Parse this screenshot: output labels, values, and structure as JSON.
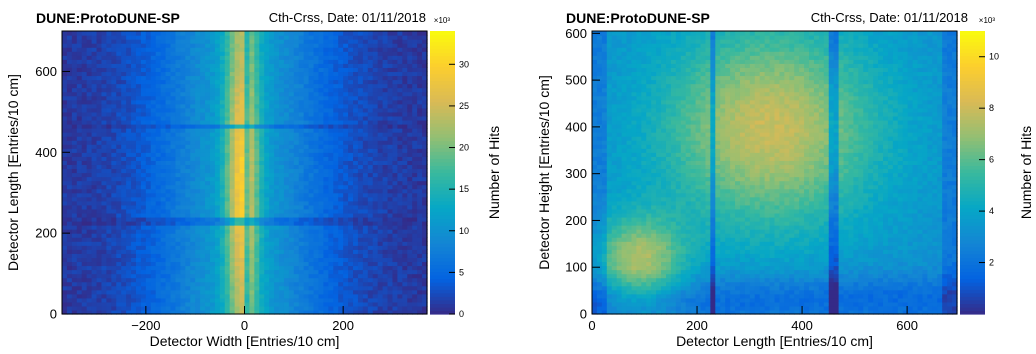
{
  "chart_data": [
    {
      "type": "heatmap",
      "title": "DUNE:ProtoDUNE-SP",
      "subtitle": "Cth-Crss, Date: 01/11/2018",
      "xlabel": "Detector Width [Entries/10 cm]",
      "ylabel": "Detector Length [Entries/10 cm]",
      "zlabel": "Number of Hits",
      "z_exponent": "×10³",
      "xlim": [
        -370,
        370
      ],
      "ylim": [
        0,
        700
      ],
      "zlim": [
        0,
        34
      ],
      "x_ticks": [
        -200,
        0,
        200
      ],
      "y_ticks": [
        0,
        200,
        400,
        600
      ],
      "z_ticks": [
        0,
        5,
        10,
        15,
        20,
        25,
        30
      ],
      "colormap": [
        "#352a87",
        "#0363e1",
        "#1485d4",
        "#06a7c6",
        "#38b99e",
        "#92bf73",
        "#d9ba56",
        "#fcce2e",
        "#f9fb0e"
      ],
      "features": {
        "peak_x": -5,
        "peak_y": 330,
        "horizontal_gaps_y": [
          230,
          465
        ],
        "vertical_gaps_x": [
          5,
          30
        ]
      }
    },
    {
      "type": "heatmap",
      "title": "DUNE:ProtoDUNE-SP",
      "subtitle": "Cth-Crss, Date: 01/11/2018",
      "xlabel": "Detector Length [Entries/10 cm]",
      "ylabel": "Detector Height [Entries/10 cm]",
      "zlabel": "Number of Hits",
      "z_exponent": "×10³",
      "xlim": [
        0,
        695
      ],
      "ylim": [
        0,
        605
      ],
      "zlim": [
        0,
        11
      ],
      "x_ticks": [
        0,
        200,
        400,
        600
      ],
      "y_ticks": [
        0,
        100,
        200,
        300,
        400,
        500,
        600
      ],
      "z_ticks": [
        2,
        4,
        6,
        8,
        10
      ],
      "colormap": [
        "#352a87",
        "#0363e1",
        "#1485d4",
        "#06a7c6",
        "#38b99e",
        "#92bf73",
        "#d9ba56",
        "#fcce2e",
        "#f9fb0e"
      ],
      "features": {
        "vertical_gaps_x": [
          230,
          460
        ]
      }
    }
  ]
}
